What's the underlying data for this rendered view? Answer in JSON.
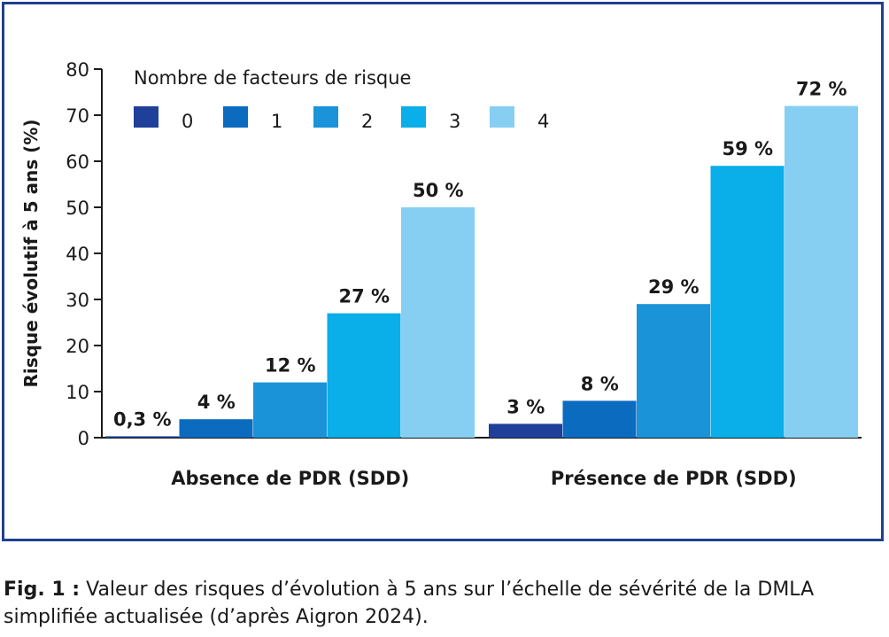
{
  "chart_data": {
    "type": "bar",
    "ylabel": "Risque évolutif à 5 ans (%)",
    "xlabel": "",
    "ylim": [
      0,
      80
    ],
    "yticks": [
      "0",
      "10",
      "20",
      "30",
      "40",
      "50",
      "60",
      "70",
      "80"
    ],
    "legend_title": "Nombre de facteurs de risque",
    "legend_placement": "top-left",
    "categories": [
      "Absence de PDR (SDD)",
      "Présence de PDR (SDD)"
    ],
    "series": [
      {
        "name": "0",
        "color": "#1f3f99",
        "values": [
          0.3,
          3
        ],
        "labels": [
          "0,3 %",
          "3 %"
        ]
      },
      {
        "name": "1",
        "color": "#0b6bbf",
        "values": [
          4,
          8
        ],
        "labels": [
          "4 %",
          "8 %"
        ]
      },
      {
        "name": "2",
        "color": "#1a93d8",
        "values": [
          12,
          29
        ],
        "labels": [
          "12 %",
          "29 %"
        ]
      },
      {
        "name": "3",
        "color": "#0aaee8",
        "values": [
          27,
          59
        ],
        "labels": [
          "27 %",
          "59 %"
        ]
      },
      {
        "name": "4",
        "color": "#86cff2",
        "values": [
          50,
          72
        ],
        "labels": [
          "50 %",
          "72 %"
        ]
      }
    ]
  },
  "caption": {
    "label": "Fig. 1 :",
    "text": "Valeur des risques d’évolution à 5 ans sur l’échelle de sévérité de la DMLA simplifiée actualisée (d’après Aigron 2024)."
  }
}
